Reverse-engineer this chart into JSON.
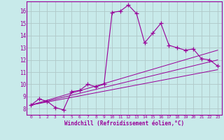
{
  "background_color": "#c8eaea",
  "grid_color": "#b0c8c8",
  "line_color": "#990099",
  "xlabel": "Windchill (Refroidissement éolien,°C)",
  "xlim": [
    -0.5,
    23.5
  ],
  "ylim": [
    7.5,
    16.8
  ],
  "xticks": [
    0,
    1,
    2,
    3,
    4,
    5,
    6,
    7,
    8,
    9,
    10,
    11,
    12,
    13,
    14,
    15,
    16,
    17,
    18,
    19,
    20,
    21,
    22,
    23
  ],
  "yticks": [
    8,
    9,
    10,
    11,
    12,
    13,
    14,
    15,
    16
  ],
  "main_line_x": [
    0,
    1,
    2,
    3,
    4,
    5,
    6,
    7,
    8,
    9,
    10,
    11,
    12,
    13,
    14,
    15,
    16,
    17,
    18,
    19,
    20,
    21,
    22,
    23
  ],
  "main_line_y": [
    8.3,
    8.8,
    8.6,
    8.1,
    7.9,
    9.4,
    9.5,
    10.0,
    9.8,
    10.0,
    15.9,
    16.0,
    16.5,
    15.8,
    13.4,
    14.2,
    15.0,
    13.2,
    13.0,
    12.8,
    12.9,
    12.1,
    12.0,
    11.5
  ],
  "ref_lines": [
    {
      "x": [
        0,
        23
      ],
      "y": [
        8.3,
        11.2
      ]
    },
    {
      "x": [
        0,
        23
      ],
      "y": [
        8.3,
        12.0
      ]
    },
    {
      "x": [
        0,
        23
      ],
      "y": [
        8.3,
        12.8
      ]
    }
  ]
}
